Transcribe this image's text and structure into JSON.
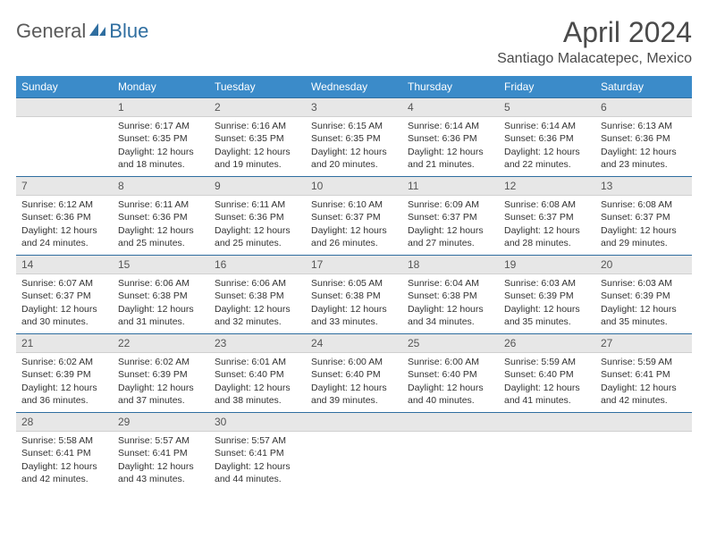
{
  "brand": {
    "word1": "General",
    "word2": "Blue",
    "word1_color": "#6b6b6b",
    "word2_color": "#2f6ea0",
    "icon_color": "#2f6ea0"
  },
  "title": "April 2024",
  "location": "Santiago Malacatepec, Mexico",
  "colors": {
    "header_bg": "#3b8bc9",
    "header_text": "#ffffff",
    "daynum_bg": "#e7e7e7",
    "daynum_border_top": "#2f6ea0",
    "body_text": "#323232"
  },
  "weekdays": [
    "Sunday",
    "Monday",
    "Tuesday",
    "Wednesday",
    "Thursday",
    "Friday",
    "Saturday"
  ],
  "weeks": [
    [
      {
        "n": "",
        "sr": "",
        "ss": "",
        "dl": ""
      },
      {
        "n": "1",
        "sr": "Sunrise: 6:17 AM",
        "ss": "Sunset: 6:35 PM",
        "dl": "Daylight: 12 hours and 18 minutes."
      },
      {
        "n": "2",
        "sr": "Sunrise: 6:16 AM",
        "ss": "Sunset: 6:35 PM",
        "dl": "Daylight: 12 hours and 19 minutes."
      },
      {
        "n": "3",
        "sr": "Sunrise: 6:15 AM",
        "ss": "Sunset: 6:35 PM",
        "dl": "Daylight: 12 hours and 20 minutes."
      },
      {
        "n": "4",
        "sr": "Sunrise: 6:14 AM",
        "ss": "Sunset: 6:36 PM",
        "dl": "Daylight: 12 hours and 21 minutes."
      },
      {
        "n": "5",
        "sr": "Sunrise: 6:14 AM",
        "ss": "Sunset: 6:36 PM",
        "dl": "Daylight: 12 hours and 22 minutes."
      },
      {
        "n": "6",
        "sr": "Sunrise: 6:13 AM",
        "ss": "Sunset: 6:36 PM",
        "dl": "Daylight: 12 hours and 23 minutes."
      }
    ],
    [
      {
        "n": "7",
        "sr": "Sunrise: 6:12 AM",
        "ss": "Sunset: 6:36 PM",
        "dl": "Daylight: 12 hours and 24 minutes."
      },
      {
        "n": "8",
        "sr": "Sunrise: 6:11 AM",
        "ss": "Sunset: 6:36 PM",
        "dl": "Daylight: 12 hours and 25 minutes."
      },
      {
        "n": "9",
        "sr": "Sunrise: 6:11 AM",
        "ss": "Sunset: 6:36 PM",
        "dl": "Daylight: 12 hours and 25 minutes."
      },
      {
        "n": "10",
        "sr": "Sunrise: 6:10 AM",
        "ss": "Sunset: 6:37 PM",
        "dl": "Daylight: 12 hours and 26 minutes."
      },
      {
        "n": "11",
        "sr": "Sunrise: 6:09 AM",
        "ss": "Sunset: 6:37 PM",
        "dl": "Daylight: 12 hours and 27 minutes."
      },
      {
        "n": "12",
        "sr": "Sunrise: 6:08 AM",
        "ss": "Sunset: 6:37 PM",
        "dl": "Daylight: 12 hours and 28 minutes."
      },
      {
        "n": "13",
        "sr": "Sunrise: 6:08 AM",
        "ss": "Sunset: 6:37 PM",
        "dl": "Daylight: 12 hours and 29 minutes."
      }
    ],
    [
      {
        "n": "14",
        "sr": "Sunrise: 6:07 AM",
        "ss": "Sunset: 6:37 PM",
        "dl": "Daylight: 12 hours and 30 minutes."
      },
      {
        "n": "15",
        "sr": "Sunrise: 6:06 AM",
        "ss": "Sunset: 6:38 PM",
        "dl": "Daylight: 12 hours and 31 minutes."
      },
      {
        "n": "16",
        "sr": "Sunrise: 6:06 AM",
        "ss": "Sunset: 6:38 PM",
        "dl": "Daylight: 12 hours and 32 minutes."
      },
      {
        "n": "17",
        "sr": "Sunrise: 6:05 AM",
        "ss": "Sunset: 6:38 PM",
        "dl": "Daylight: 12 hours and 33 minutes."
      },
      {
        "n": "18",
        "sr": "Sunrise: 6:04 AM",
        "ss": "Sunset: 6:38 PM",
        "dl": "Daylight: 12 hours and 34 minutes."
      },
      {
        "n": "19",
        "sr": "Sunrise: 6:03 AM",
        "ss": "Sunset: 6:39 PM",
        "dl": "Daylight: 12 hours and 35 minutes."
      },
      {
        "n": "20",
        "sr": "Sunrise: 6:03 AM",
        "ss": "Sunset: 6:39 PM",
        "dl": "Daylight: 12 hours and 35 minutes."
      }
    ],
    [
      {
        "n": "21",
        "sr": "Sunrise: 6:02 AM",
        "ss": "Sunset: 6:39 PM",
        "dl": "Daylight: 12 hours and 36 minutes."
      },
      {
        "n": "22",
        "sr": "Sunrise: 6:02 AM",
        "ss": "Sunset: 6:39 PM",
        "dl": "Daylight: 12 hours and 37 minutes."
      },
      {
        "n": "23",
        "sr": "Sunrise: 6:01 AM",
        "ss": "Sunset: 6:40 PM",
        "dl": "Daylight: 12 hours and 38 minutes."
      },
      {
        "n": "24",
        "sr": "Sunrise: 6:00 AM",
        "ss": "Sunset: 6:40 PM",
        "dl": "Daylight: 12 hours and 39 minutes."
      },
      {
        "n": "25",
        "sr": "Sunrise: 6:00 AM",
        "ss": "Sunset: 6:40 PM",
        "dl": "Daylight: 12 hours and 40 minutes."
      },
      {
        "n": "26",
        "sr": "Sunrise: 5:59 AM",
        "ss": "Sunset: 6:40 PM",
        "dl": "Daylight: 12 hours and 41 minutes."
      },
      {
        "n": "27",
        "sr": "Sunrise: 5:59 AM",
        "ss": "Sunset: 6:41 PM",
        "dl": "Daylight: 12 hours and 42 minutes."
      }
    ],
    [
      {
        "n": "28",
        "sr": "Sunrise: 5:58 AM",
        "ss": "Sunset: 6:41 PM",
        "dl": "Daylight: 12 hours and 42 minutes."
      },
      {
        "n": "29",
        "sr": "Sunrise: 5:57 AM",
        "ss": "Sunset: 6:41 PM",
        "dl": "Daylight: 12 hours and 43 minutes."
      },
      {
        "n": "30",
        "sr": "Sunrise: 5:57 AM",
        "ss": "Sunset: 6:41 PM",
        "dl": "Daylight: 12 hours and 44 minutes."
      },
      {
        "n": "",
        "sr": "",
        "ss": "",
        "dl": ""
      },
      {
        "n": "",
        "sr": "",
        "ss": "",
        "dl": ""
      },
      {
        "n": "",
        "sr": "",
        "ss": "",
        "dl": ""
      },
      {
        "n": "",
        "sr": "",
        "ss": "",
        "dl": ""
      }
    ]
  ]
}
